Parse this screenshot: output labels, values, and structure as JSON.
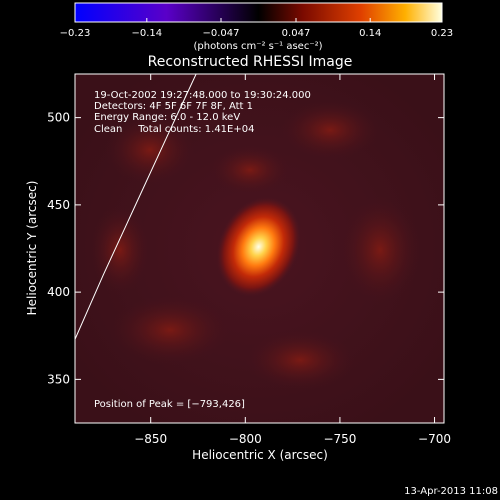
{
  "chart_data": {
    "type": "heatmap",
    "title": "Reconstructed RHESSI Image",
    "xlabel": "Heliocentric X (arcsec)",
    "ylabel": "Heliocentric Y (arcsec)",
    "xlim": [
      -890,
      -695
    ],
    "ylim": [
      325,
      525
    ],
    "xticks": [
      -850,
      -800,
      -750,
      -700
    ],
    "yticks": [
      350,
      400,
      450,
      500
    ],
    "xtick_labels": [
      "−850",
      "−800",
      "−750",
      "−700"
    ],
    "ytick_labels": [
      "350",
      "400",
      "450",
      "500"
    ],
    "colorbar": {
      "range": [
        -0.23,
        0.23
      ],
      "ticks": [
        -0.23,
        -0.14,
        -0.047,
        0.047,
        0.14,
        0.23
      ],
      "tick_labels": [
        "−0.23",
        "−0.14",
        "−0.047",
        "0.047",
        "0.14",
        "0.23"
      ],
      "unit_label": "(photons cm⁻² s⁻¹ asec⁻²)"
    },
    "annotations": [
      "19-Oct-2002 19:27:48.000 to 19:30:24.000",
      "Detectors: 4F 5F 6F 7F 8F, Att 1",
      "Energy Range: 6.0 - 12.0 keV",
      "Clean     Total counts: 1.41E+04"
    ],
    "peak_label": "Position of Peak = [−793,426]",
    "peak": {
      "x": -793,
      "y": 426,
      "value": 0.23
    },
    "limb_curve": [
      [
        -890,
        373
      ],
      [
        -875,
        410
      ],
      [
        -858,
        450
      ],
      [
        -841,
        490
      ],
      [
        -826,
        525
      ]
    ],
    "timestamp": "13-Apr-2013 11:08"
  }
}
